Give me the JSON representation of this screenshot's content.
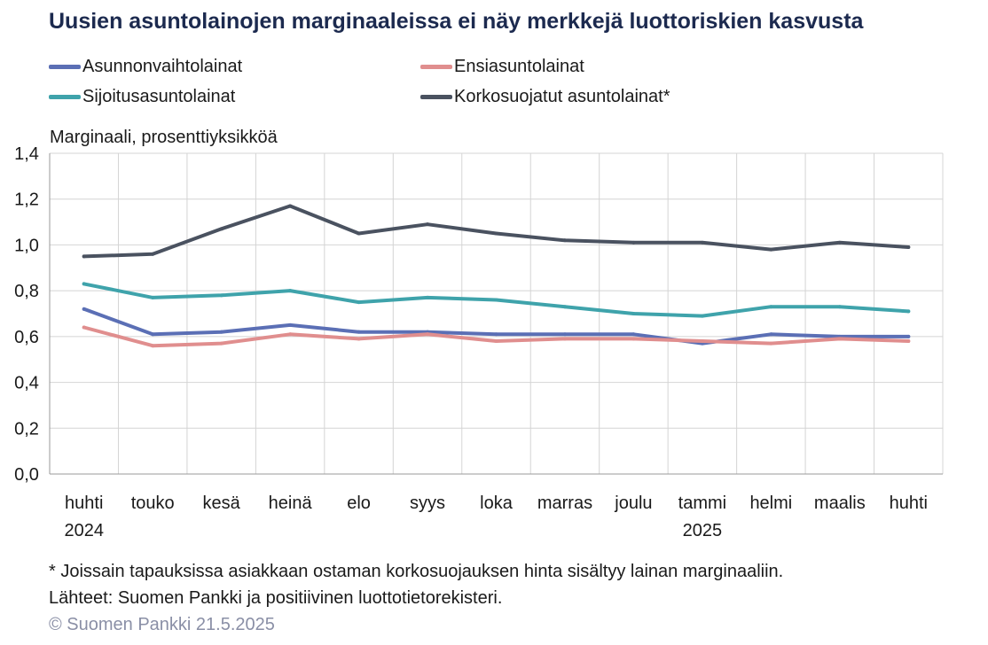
{
  "title": "Uusien asuntolainojen marginaaleissa ei näy merkkejä luottoriskien kasvusta",
  "ylabel": "Marginaali, prosenttiyksikköä",
  "footnote": "* Joissain tapauksissa asiakkaan ostaman korkosuojauksen hinta sisältyy lainan marginaaliin.",
  "source": "Lähteet: Suomen Pankki ja positiivinen luottotietorekisteri.",
  "copyright": "© Suomen Pankki 21.5.2025",
  "chart_data": {
    "type": "line",
    "title": "Uusien asuntolainojen marginaaleissa ei näy merkkejä luottoriskien kasvusta",
    "ylabel": "Marginaali, prosenttiyksikköä",
    "xlabel": "",
    "ylim": [
      0,
      1.4
    ],
    "yticks": [
      "0,0",
      "0,2",
      "0,4",
      "0,6",
      "0,8",
      "1,0",
      "1,2",
      "1,4"
    ],
    "categories": [
      "huhti",
      "touko",
      "kesä",
      "heinä",
      "elo",
      "syys",
      "loka",
      "marras",
      "joulu",
      "tammi",
      "helmi",
      "maalis",
      "huhti"
    ],
    "year_labels": [
      "2024",
      "",
      "",
      "",
      "",
      "",
      "",
      "",
      "",
      "2025",
      "",
      "",
      ""
    ],
    "grid": true,
    "legend_position": "top",
    "series": [
      {
        "name": "Asunnonvaihtolainat",
        "color": "#5b6fb5",
        "values": [
          0.72,
          0.61,
          0.62,
          0.65,
          0.62,
          0.62,
          0.61,
          0.61,
          0.61,
          0.57,
          0.61,
          0.6,
          0.6
        ]
      },
      {
        "name": "Ensiasuntolainat",
        "color": "#e08e8e",
        "values": [
          0.64,
          0.56,
          0.57,
          0.61,
          0.59,
          0.61,
          0.58,
          0.59,
          0.59,
          0.58,
          0.57,
          0.59,
          0.58
        ]
      },
      {
        "name": "Sijoitusasuntolainat",
        "color": "#3fa3ab",
        "values": [
          0.83,
          0.77,
          0.78,
          0.8,
          0.75,
          0.77,
          0.76,
          0.73,
          0.7,
          0.69,
          0.73,
          0.73,
          0.71
        ]
      },
      {
        "name": "Korkosuojatut asuntolainat*",
        "color": "#4a5260",
        "values": [
          0.95,
          0.96,
          1.07,
          1.17,
          1.05,
          1.09,
          1.05,
          1.02,
          1.01,
          1.01,
          0.98,
          1.01,
          0.99
        ]
      }
    ]
  }
}
